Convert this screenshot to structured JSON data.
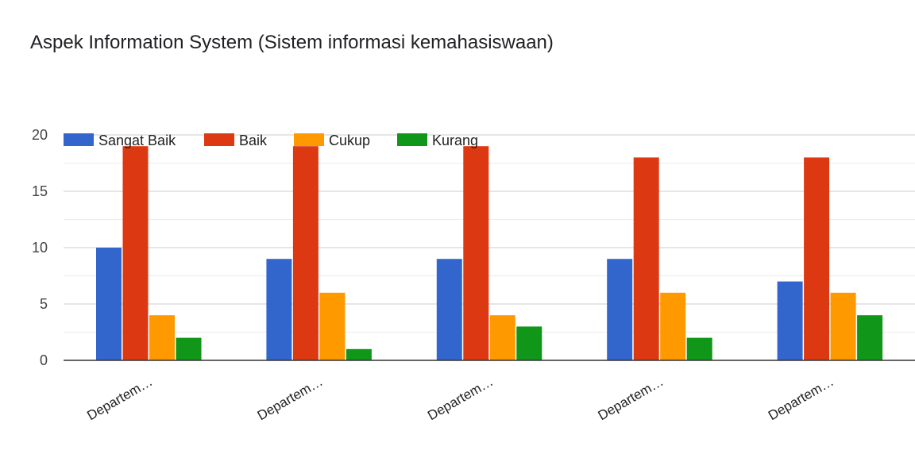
{
  "chart_data": {
    "type": "bar",
    "title": "Aspek Information System (Sistem informasi kemahasiswaan)",
    "xlabel": "",
    "ylabel": "",
    "categories": [
      "Departem…",
      "Departem…",
      "Departem…",
      "Departem…",
      "Departem…"
    ],
    "series": [
      {
        "name": "Sangat Baik",
        "color": "#3366cc",
        "values": [
          10,
          9,
          9,
          9,
          7
        ]
      },
      {
        "name": "Baik",
        "color": "#dc3912",
        "values": [
          19,
          19,
          19,
          18,
          18
        ]
      },
      {
        "name": "Cukup",
        "color": "#ff9900",
        "values": [
          4,
          6,
          4,
          6,
          6
        ]
      },
      {
        "name": "Kurang",
        "color": "#109618",
        "values": [
          2,
          1,
          3,
          2,
          4
        ]
      }
    ],
    "ylim": [
      0,
      20
    ],
    "yticks": [
      0,
      5,
      10,
      15,
      20
    ],
    "grid": true,
    "legend_position": "top-left"
  }
}
